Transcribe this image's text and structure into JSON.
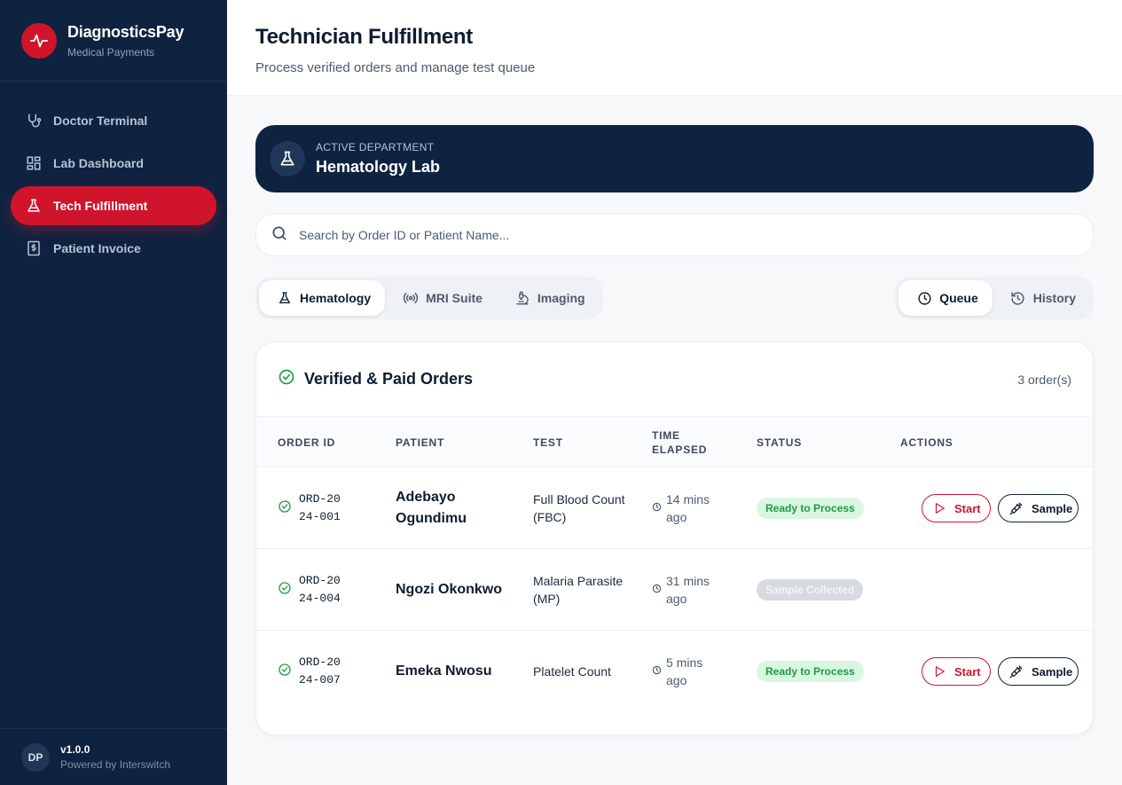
{
  "brand": {
    "name": "DiagnosticsPay",
    "subtitle": "Medical Payments"
  },
  "sidebar": {
    "items": [
      {
        "label": "Doctor Terminal",
        "icon": "stethoscope-icon"
      },
      {
        "label": "Lab Dashboard",
        "icon": "dashboard-icon"
      },
      {
        "label": "Tech Fulfillment",
        "icon": "flask-icon",
        "active": true
      },
      {
        "label": "Patient Invoice",
        "icon": "invoice-icon"
      }
    ],
    "footer": {
      "avatar": "DP",
      "version": "v1.0.0",
      "powered": "Powered by Interswitch"
    }
  },
  "header": {
    "title": "Technician Fulfillment",
    "subtitle": "Process verified orders and manage test queue"
  },
  "department": {
    "label": "ACTIVE DEPARTMENT",
    "name": "Hematology Lab"
  },
  "search": {
    "placeholder": "Search by Order ID or Patient Name..."
  },
  "dept_tabs": [
    {
      "label": "Hematology",
      "icon": "flask-icon",
      "active": true
    },
    {
      "label": "MRI Suite",
      "icon": "radio-waves-icon"
    },
    {
      "label": "Imaging",
      "icon": "microscope-icon"
    }
  ],
  "view_tabs": [
    {
      "label": "Queue",
      "icon": "clock-icon",
      "active": true
    },
    {
      "label": "History",
      "icon": "history-icon"
    }
  ],
  "orders": {
    "title": "Verified & Paid Orders",
    "count": "3 order(s)",
    "columns": [
      "ORDER ID",
      "PATIENT",
      "TEST",
      "TIME ELAPSED",
      "STATUS",
      "ACTIONS"
    ],
    "start_label": "Start",
    "sample_label": "Sample",
    "rows": [
      {
        "id": "ORD-2024-001",
        "patient": "Adebayo Ogundimu",
        "test": "Full Blood Count (FBC)",
        "time": "14 mins ago",
        "status": "Ready to Process",
        "status_type": "ready",
        "actions": true
      },
      {
        "id": "ORD-2024-004",
        "patient": "Ngozi Okonkwo",
        "test": "Malaria Parasite (MP)",
        "time": "31 mins ago",
        "status": "Sample Collected",
        "status_type": "collected",
        "actions": false
      },
      {
        "id": "ORD-2024-007",
        "patient": "Emeka Nwosu",
        "test": "Platelet Count",
        "time": "5 mins ago",
        "status": "Ready to Process",
        "status_type": "ready",
        "actions": true
      }
    ]
  },
  "colors": {
    "navy": "#0e2340",
    "accent_red": "#d0142c",
    "success": "#1e9a47"
  }
}
